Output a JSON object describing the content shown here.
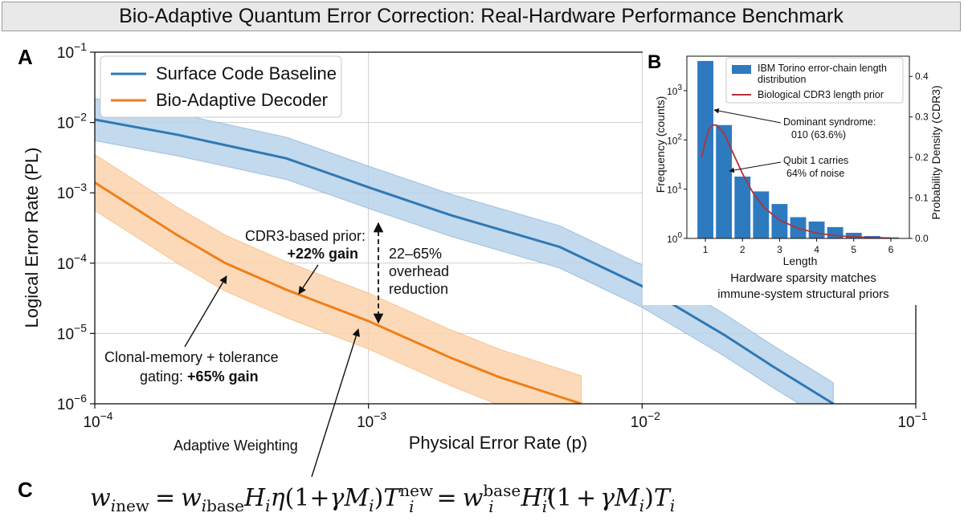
{
  "title": "Bio-Adaptive Quantum Error Correction: Real-Hardware Performance Benchmark",
  "colors": {
    "baseline": "#2f78b5",
    "baseline_band": "#b9d2ea",
    "bio": "#ef7f1a",
    "bio_band": "#fbd3ad",
    "prior": "#b2323a",
    "bars": "#2e7abf"
  },
  "chart_data": [
    {
      "panel": "A",
      "type": "line",
      "xscale": "log",
      "yscale": "log",
      "xlabel": "Physical Error Rate (p)",
      "ylabel": "Logical Error Rate (PL)",
      "xlim": [
        0.0001,
        0.1
      ],
      "ylim": [
        1e-06,
        0.1
      ],
      "grid": true,
      "xticks": [
        {
          "value": 0.0001,
          "base": "10",
          "exp": "−4"
        },
        {
          "value": 0.001,
          "base": "10",
          "exp": "−3"
        },
        {
          "value": 0.01,
          "base": "10",
          "exp": "−2"
        },
        {
          "value": 0.1,
          "base": "10",
          "exp": "−1"
        }
      ],
      "yticks": [
        {
          "value": 1e-06,
          "base": "10",
          "exp": "−6"
        },
        {
          "value": 1e-05,
          "base": "10",
          "exp": "−5"
        },
        {
          "value": 0.0001,
          "base": "10",
          "exp": "−4"
        },
        {
          "value": 0.001,
          "base": "10",
          "exp": "−3"
        },
        {
          "value": 0.01,
          "base": "10",
          "exp": "−2"
        },
        {
          "value": 0.1,
          "base": "10",
          "exp": "−1"
        }
      ],
      "legend": {
        "placement": "upper-left",
        "entries": [
          "Surface Code Baseline",
          "Bio-Adaptive Decoder"
        ]
      },
      "series": [
        {
          "name": "Surface Code Baseline",
          "color_key": "baseline",
          "x": [
            0.0001,
            0.0002,
            0.0005,
            0.001,
            0.002,
            0.005,
            0.01,
            0.02,
            0.03,
            0.05
          ],
          "y": [
            0.011,
            0.0067,
            0.0031,
            0.0012,
            0.00048,
            0.00017,
            4.7e-05,
            9.5e-06,
            3.4e-06,
            1e-06
          ],
          "band_factor": 2.0
        },
        {
          "name": "Bio-Adaptive Decoder",
          "color_key": "bio",
          "x": [
            0.0001,
            0.0002,
            0.0003,
            0.0005,
            0.001,
            0.002,
            0.003,
            0.006
          ],
          "y": [
            0.0014,
            0.00025,
            0.0001,
            4.2e-05,
            1.5e-05,
            4.5e-06,
            2.4e-06,
            1e-06
          ],
          "band_factor": 2.5
        }
      ],
      "annotations": {
        "cdr3_line1": "CDR3-based prior:",
        "cdr3_line2": "+22% gain",
        "overhead_line1": "22–65%",
        "overhead_line2": "overhead",
        "overhead_line3": "reduction",
        "clonal_line1": "Clonal-memory + tolerance",
        "clonal_line2a": "gating: ",
        "clonal_line2b": "+65% gain",
        "adaptive": "Adaptive Weighting"
      }
    },
    {
      "panel": "B",
      "type": "bar",
      "xlabel": "Length",
      "ylabel": "Frequency (counts)",
      "ylabel_right": "Probability Density (CDR3)",
      "yscale": "log",
      "xlim": [
        0.5,
        6.5
      ],
      "ylim": [
        1,
        5000
      ],
      "ylim_right": [
        0,
        0.45
      ],
      "categories": [
        1,
        1.5,
        2,
        2.5,
        3,
        3.5,
        4,
        4.5,
        5,
        5.5,
        6
      ],
      "values": [
        4000,
        200,
        18,
        9,
        5,
        2.7,
        2.2,
        1.7,
        1.3,
        1.12,
        1.05
      ],
      "xticks": [
        "1",
        "2",
        "3",
        "4",
        "5",
        "6"
      ],
      "yticks": [
        {
          "value": 1,
          "base": "10",
          "exp": "0"
        },
        {
          "value": 10,
          "base": "10",
          "exp": "1"
        },
        {
          "value": 100,
          "base": "10",
          "exp": "2"
        },
        {
          "value": 1000,
          "base": "10",
          "exp": "3"
        }
      ],
      "yticks_right": [
        "0.0",
        "0.1",
        "0.2",
        "0.3",
        "0.4"
      ],
      "prior_curve": {
        "x": [
          0.9,
          1.0,
          1.1,
          1.2,
          1.3,
          1.4,
          1.5,
          1.7,
          2.0,
          2.3,
          2.6,
          3.0,
          3.5,
          4.0,
          4.5,
          5.0,
          5.5,
          6.0
        ],
        "density": [
          0.2,
          0.24,
          0.27,
          0.28,
          0.28,
          0.27,
          0.26,
          0.22,
          0.16,
          0.11,
          0.075,
          0.045,
          0.025,
          0.013,
          0.007,
          0.004,
          0.002,
          0.001
        ]
      },
      "legend": {
        "placement": "top",
        "bars": "IBM Torino error-chain length distribution",
        "curve": "Biological CDR3 length prior"
      },
      "annotations": {
        "dominant_line1": "Dominant syndrome:",
        "dominant_line2": "010 (63.6%)",
        "qubit_line1": "Qubit 1 carries",
        "qubit_line2": "64% of noise"
      },
      "caption_line1": "Hardware sparsity matches",
      "caption_line2": "immune-system structural priors"
    }
  ],
  "panel_labels": {
    "a": "A",
    "b": "B",
    "c": "C"
  },
  "equation": {
    "w": "w",
    "i": "i",
    "new": "new",
    "base": "base",
    "H": "H",
    "eta": "η",
    "open": "(1",
    "plus": "+",
    "gamma": "γ",
    "M": "M",
    "close": ")",
    "T": "T",
    "eq": "="
  }
}
